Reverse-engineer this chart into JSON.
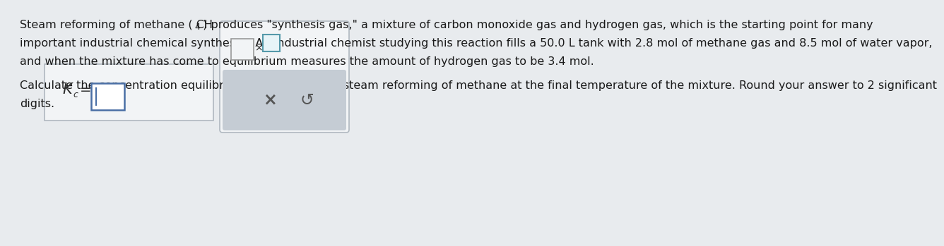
{
  "background_color": "#e8ebee",
  "text_color": "#1a1a1a",
  "font_size_body": 11.5,
  "line1_pre": "Steam reforming of methane ( CH",
  "line1_sub": "4",
  "line1_post": " ) produces \"synthesis gas,\" a mixture of carbon monoxide gas and hydrogen gas, which is the starting point for many",
  "line2": "important industrial chemical syntheses. An industrial chemist studying this reaction fills a 50.0 L tank with 2.8 mol of methane gas and 8.5 mol of water vapor,",
  "line3": "and when the mixture has come to equilibrium measures the amount of hydrogen gas to be 3.4 mol.",
  "line4": "Calculate the concentration equilibrium constant for the steam reforming of methane at the final temperature of the mixture. Round your answer to 2 significant",
  "line5": "digits.",
  "box1_facecolor": "#f2f4f6",
  "box1_edgecolor": "#b0b8c0",
  "box2_facecolor": "#f2f4f6",
  "box2_edgecolor": "#b0b8c0",
  "input_edgecolor": "#4a6fa5",
  "input_facecolor": "#ffffff",
  "exp_edgecolor": "#5599aa",
  "exp_facecolor": "#e8f4f8",
  "gray_bar_color": "#c5ccd4",
  "kc_color": "#2c2c2c",
  "button_color": "#555555"
}
